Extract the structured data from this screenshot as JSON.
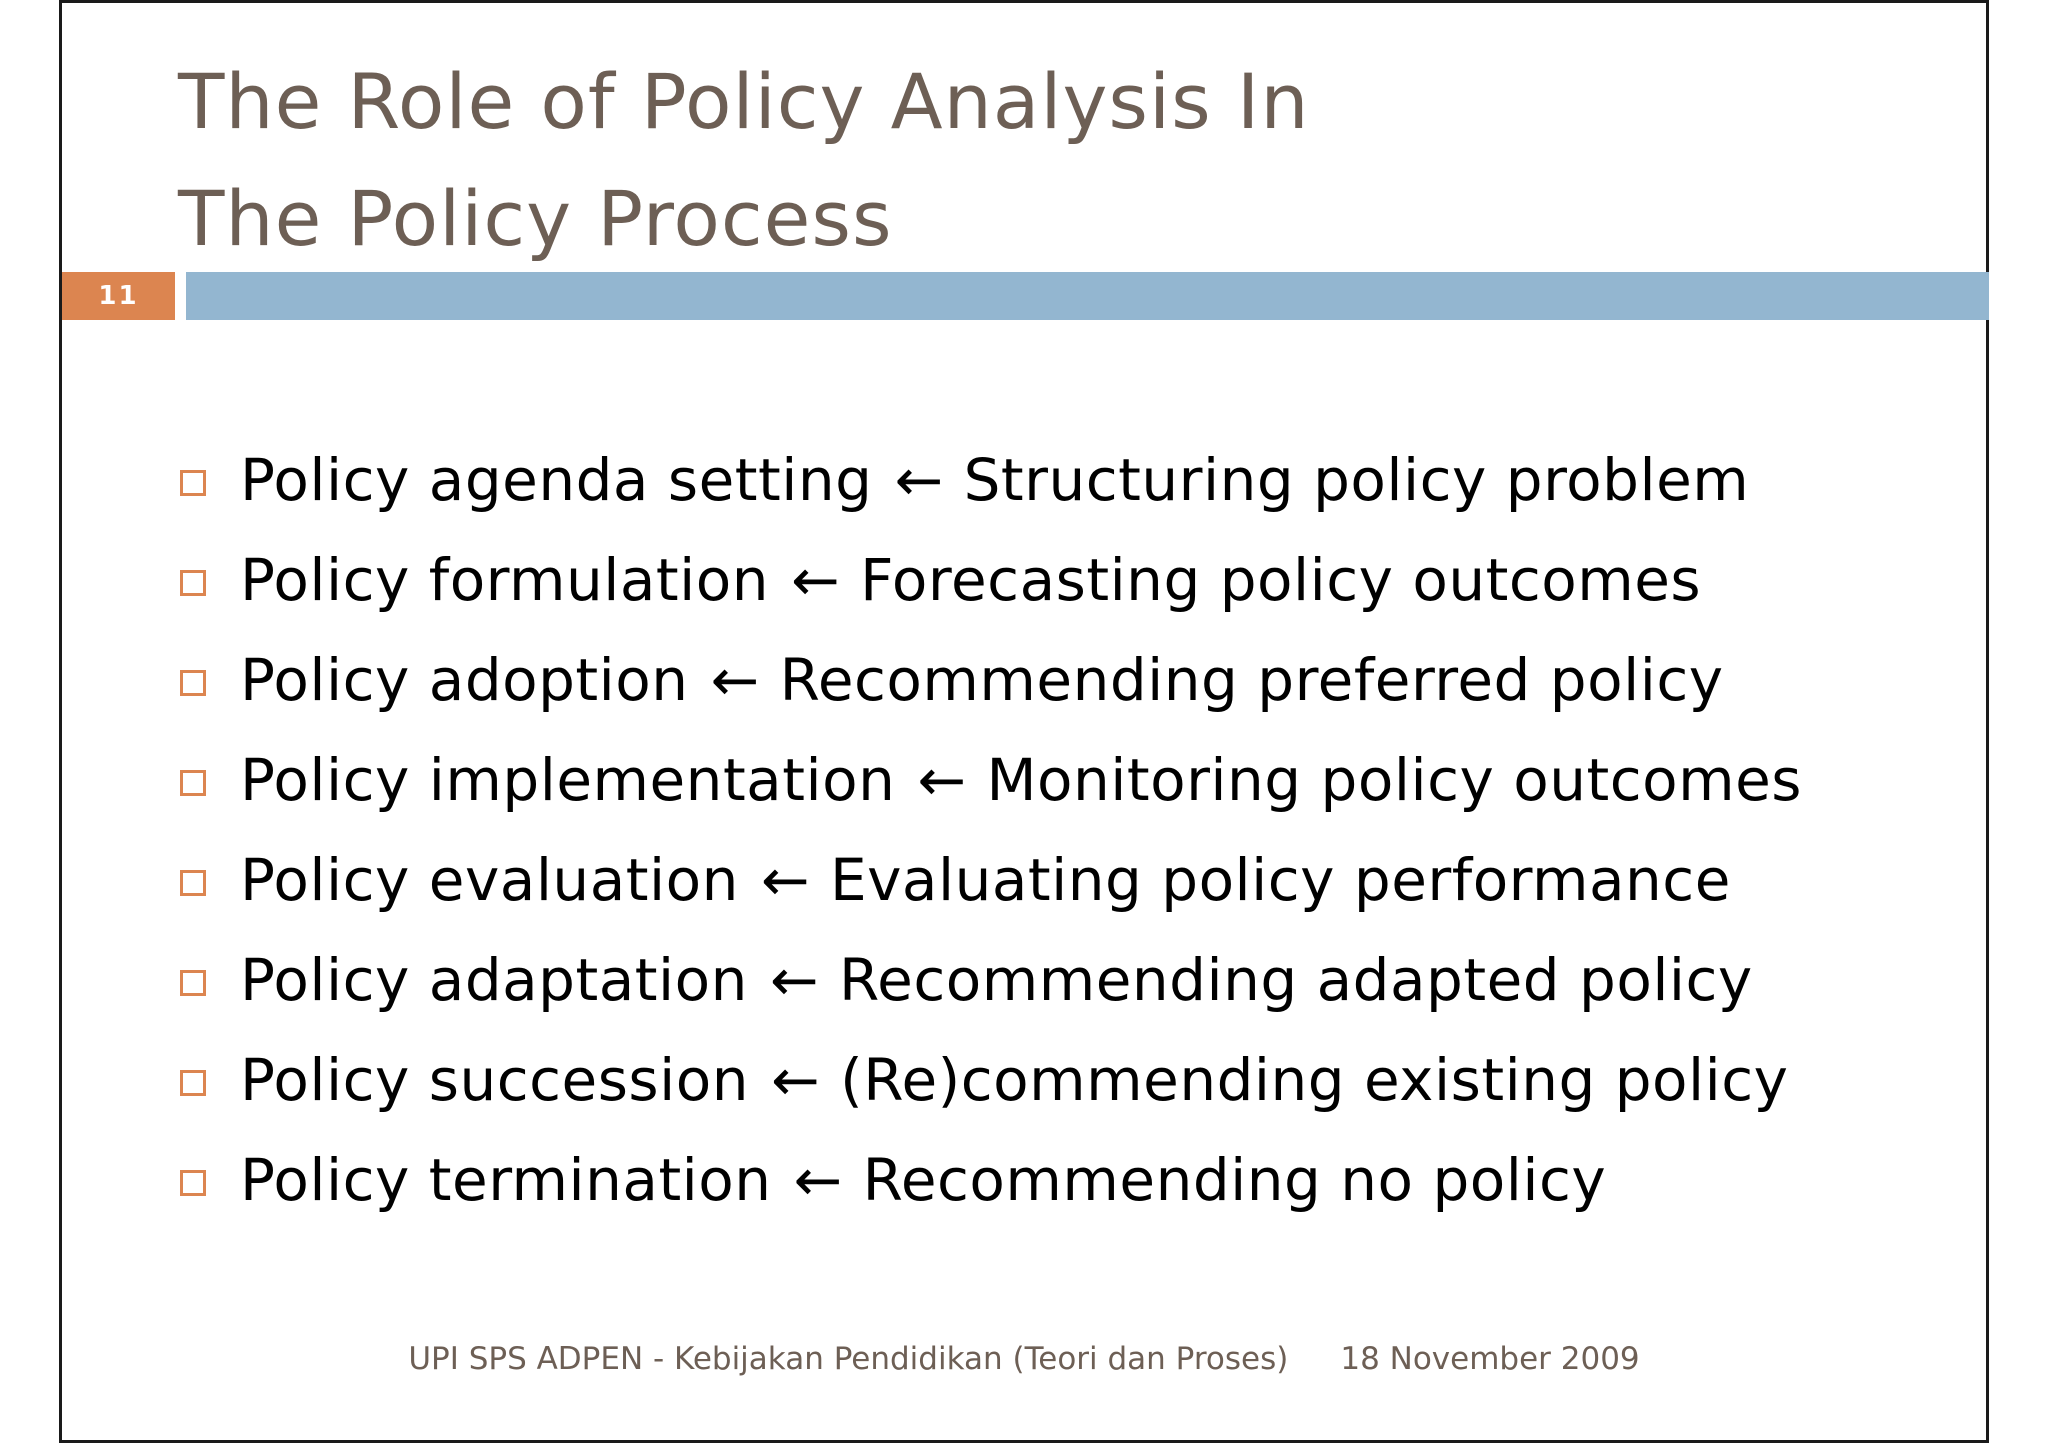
{
  "slide": {
    "title_line1": "The Role of Policy Analysis In",
    "title_line2": "The Policy Process",
    "number": "11",
    "arrow_glyph": "←",
    "bullets": [
      {
        "stage": "Policy agenda setting",
        "analysis": "Structuring policy problem"
      },
      {
        "stage": "Policy formulation",
        "analysis": "Forecasting policy outcomes"
      },
      {
        "stage": "Policy adoption",
        "analysis": "Recommending preferred policy"
      },
      {
        "stage": "Policy implementation",
        "analysis": "Monitoring policy outcomes"
      },
      {
        "stage": "Policy evaluation",
        "analysis": "Evaluating policy performance"
      },
      {
        "stage": "Policy adaptation",
        "analysis": "Recommending adapted policy"
      },
      {
        "stage": "Policy succession",
        "analysis": "(Re)commending existing policy"
      },
      {
        "stage": "Policy termination",
        "analysis": "Recommending no policy"
      }
    ],
    "footer_text": "UPI SPS ADPEN - Kebijakan Pendidikan (Teori dan Proses)",
    "footer_date": "18 November 2009"
  },
  "colors": {
    "title": "#6d5f55",
    "accent_orange": "#dc8550",
    "accent_blue": "#93b6d0",
    "body_text": "#000000"
  },
  "icons": {
    "bullet": "square-outline-icon",
    "arrow": "left-arrow-icon"
  }
}
